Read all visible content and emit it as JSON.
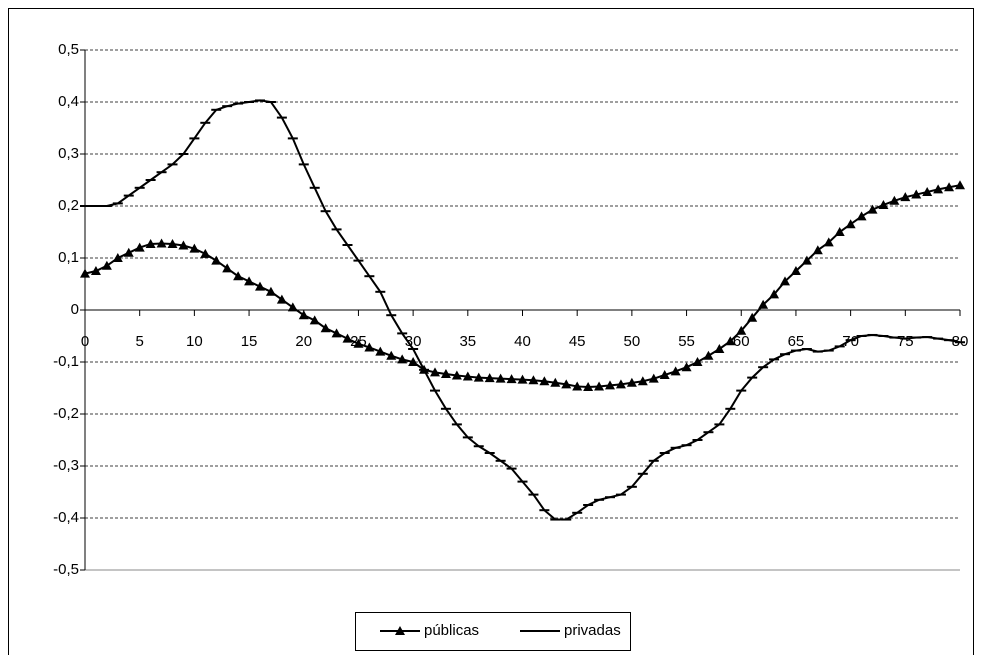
{
  "chart_data": {
    "type": "line",
    "x": [
      0,
      1,
      2,
      3,
      4,
      5,
      6,
      7,
      8,
      9,
      10,
      11,
      12,
      13,
      14,
      15,
      16,
      17,
      18,
      19,
      20,
      21,
      22,
      23,
      24,
      25,
      26,
      27,
      28,
      29,
      30,
      31,
      32,
      33,
      34,
      35,
      36,
      37,
      38,
      39,
      40,
      41,
      42,
      43,
      44,
      45,
      46,
      47,
      48,
      49,
      50,
      51,
      52,
      53,
      54,
      55,
      56,
      57,
      58,
      59,
      60,
      61,
      62,
      63,
      64,
      65,
      66,
      67,
      68,
      69,
      70,
      71,
      72,
      73,
      74,
      75,
      76,
      77,
      78,
      79,
      80
    ],
    "series": [
      {
        "name": "públicas",
        "color": "#000000",
        "marker": "triangle",
        "values": [
          0.07,
          0.075,
          0.085,
          0.1,
          0.11,
          0.12,
          0.127,
          0.128,
          0.127,
          0.124,
          0.118,
          0.108,
          0.095,
          0.08,
          0.065,
          0.055,
          0.045,
          0.035,
          0.02,
          0.005,
          -0.01,
          -0.02,
          -0.035,
          -0.045,
          -0.055,
          -0.065,
          -0.072,
          -0.08,
          -0.088,
          -0.095,
          -0.1,
          -0.115,
          -0.12,
          -0.123,
          -0.126,
          -0.128,
          -0.13,
          -0.131,
          -0.132,
          -0.133,
          -0.134,
          -0.135,
          -0.137,
          -0.14,
          -0.143,
          -0.147,
          -0.148,
          -0.147,
          -0.145,
          -0.143,
          -0.14,
          -0.137,
          -0.132,
          -0.125,
          -0.118,
          -0.11,
          -0.1,
          -0.088,
          -0.075,
          -0.06,
          -0.04,
          -0.015,
          0.01,
          0.03,
          0.055,
          0.075,
          0.095,
          0.115,
          0.13,
          0.15,
          0.165,
          0.18,
          0.193,
          0.202,
          0.21,
          0.217,
          0.222,
          0.227,
          0.232,
          0.236,
          0.24
        ]
      },
      {
        "name": "privadas",
        "color": "#000000",
        "marker": "dash",
        "values": [
          0.2,
          0.2,
          0.2,
          0.205,
          0.22,
          0.235,
          0.25,
          0.265,
          0.28,
          0.3,
          0.33,
          0.36,
          0.385,
          0.392,
          0.397,
          0.4,
          0.403,
          0.4,
          0.37,
          0.33,
          0.28,
          0.235,
          0.19,
          0.155,
          0.125,
          0.095,
          0.065,
          0.035,
          -0.01,
          -0.045,
          -0.075,
          -0.115,
          -0.155,
          -0.19,
          -0.22,
          -0.245,
          -0.262,
          -0.275,
          -0.29,
          -0.305,
          -0.33,
          -0.355,
          -0.385,
          -0.403,
          -0.403,
          -0.39,
          -0.375,
          -0.365,
          -0.36,
          -0.355,
          -0.34,
          -0.315,
          -0.29,
          -0.275,
          -0.265,
          -0.26,
          -0.25,
          -0.235,
          -0.22,
          -0.19,
          -0.155,
          -0.13,
          -0.11,
          -0.095,
          -0.085,
          -0.078,
          -0.075,
          -0.08,
          -0.078,
          -0.07,
          -0.058,
          -0.05,
          -0.048,
          -0.05,
          -0.053,
          -0.055,
          -0.053,
          -0.052,
          -0.055,
          -0.058,
          -0.062
        ]
      }
    ],
    "xlim": [
      0,
      80
    ],
    "xticks": [
      0,
      5,
      10,
      15,
      20,
      25,
      30,
      35,
      40,
      45,
      50,
      55,
      60,
      65,
      70,
      75,
      80
    ],
    "ylim": [
      -0.5,
      0.5
    ],
    "yticks": [
      {
        "value": -0.5,
        "label": "-0,5"
      },
      {
        "value": -0.4,
        "label": "-0,4"
      },
      {
        "value": -0.3,
        "label": "-0,3"
      },
      {
        "value": -0.2,
        "label": "-0,2"
      },
      {
        "value": -0.1,
        "label": "-0,1"
      },
      0,
      {
        "value": 0.1,
        "label": "0,1"
      },
      {
        "value": 0.2,
        "label": "0,2"
      },
      {
        "value": 0.3,
        "label": "0,3"
      },
      {
        "value": 0.4,
        "label": "0,4"
      },
      {
        "value": 0.5,
        "label": "0,5"
      }
    ],
    "grid": true,
    "legend": "bottom"
  }
}
